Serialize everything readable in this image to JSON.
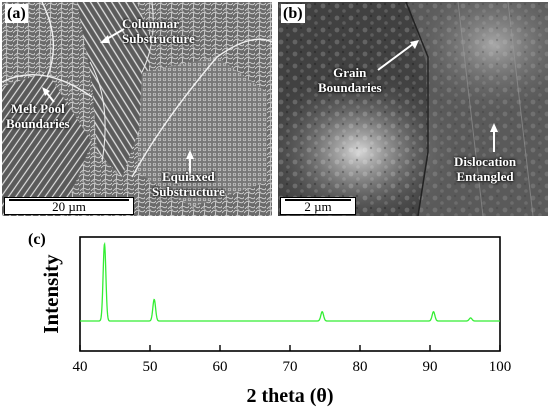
{
  "panel_a": {
    "tag": "(a)",
    "labels": {
      "columnar": "Columnar\nSubstructure",
      "melt_pool": "Melt Pool\nBoundaries",
      "equiaxed": "Equiaxed\nSubstructure"
    },
    "scale": "20 µm"
  },
  "panel_b": {
    "tag": "(b)",
    "labels": {
      "grain": "Grain\nBoundaries",
      "dislocation": "Dislocation\nEntangled"
    },
    "scale": "2 µm"
  },
  "panel_c": {
    "tag": "(c)"
  },
  "chart_data": {
    "type": "line",
    "xlabel": "2 theta (θ)",
    "ylabel": "Intensity",
    "xlim": [
      40,
      100
    ],
    "xticks": [
      "40",
      "50",
      "60",
      "70",
      "80",
      "90",
      "100"
    ],
    "line_color": "#33ee33",
    "peaks": [
      {
        "x": 43.5,
        "y": 1.0
      },
      {
        "x": 50.6,
        "y": 0.28
      },
      {
        "x": 74.6,
        "y": 0.12
      },
      {
        "x": 90.5,
        "y": 0.12
      },
      {
        "x": 95.8,
        "y": 0.04
      }
    ]
  }
}
